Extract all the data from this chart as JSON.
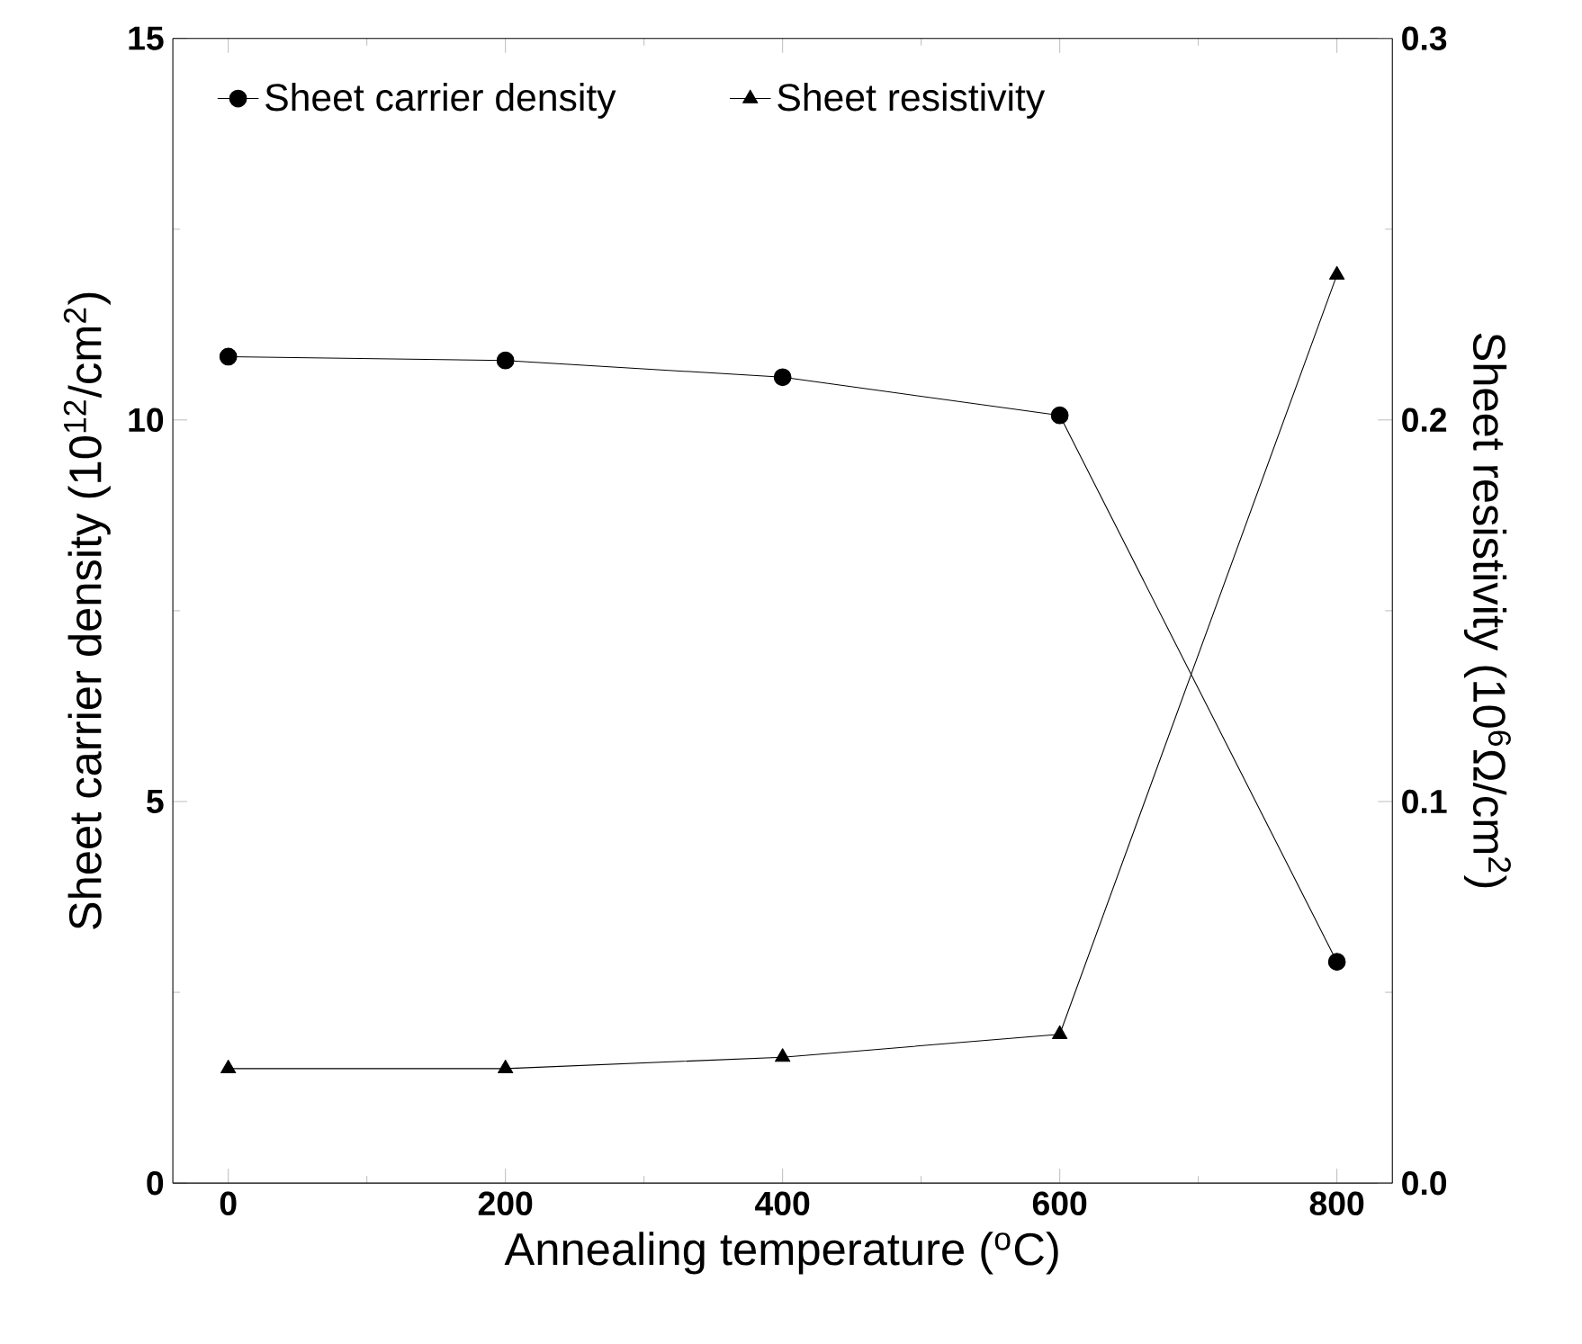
{
  "chart_data": {
    "type": "line",
    "xlabel": "Annealing temperature ($^{o}$C)",
    "ylabel": "Sheet carrier density (10$^{12}$/cm$^{2}$)",
    "y2label": "Sheet resistivity (10$^{6}$Ω/cm$^{2}$)",
    "x": [
      0,
      200,
      400,
      600,
      800
    ],
    "series": [
      {
        "name": "Sheet carrier density",
        "color": "#000000",
        "marker": "circle",
        "values": [
          10.83,
          10.78,
          10.56,
          10.06,
          2.9
        ]
      },
      {
        "name": "Sheet resistivity",
        "color": "#000000",
        "marker": "triangle",
        "axis": "y2",
        "values": [
          0.03,
          0.03,
          0.033,
          0.039,
          0.238
        ]
      }
    ],
    "xlim": [
      -40,
      840
    ],
    "xticks": [
      0,
      200,
      400,
      600,
      800
    ],
    "ylim": [
      0,
      15
    ],
    "yticks": [
      0,
      5,
      10,
      15
    ],
    "y2lim": [
      0,
      0.3
    ],
    "y2ticks": [
      {
        "value": 0,
        "label": "0.0"
      },
      {
        "value": 0.1,
        "label": "0.1"
      },
      {
        "value": 0.2,
        "label": "0.2"
      },
      {
        "value": 0.3,
        "label": "0.3"
      }
    ],
    "legend": "top left",
    "grid": false,
    "line_style": "solid"
  }
}
